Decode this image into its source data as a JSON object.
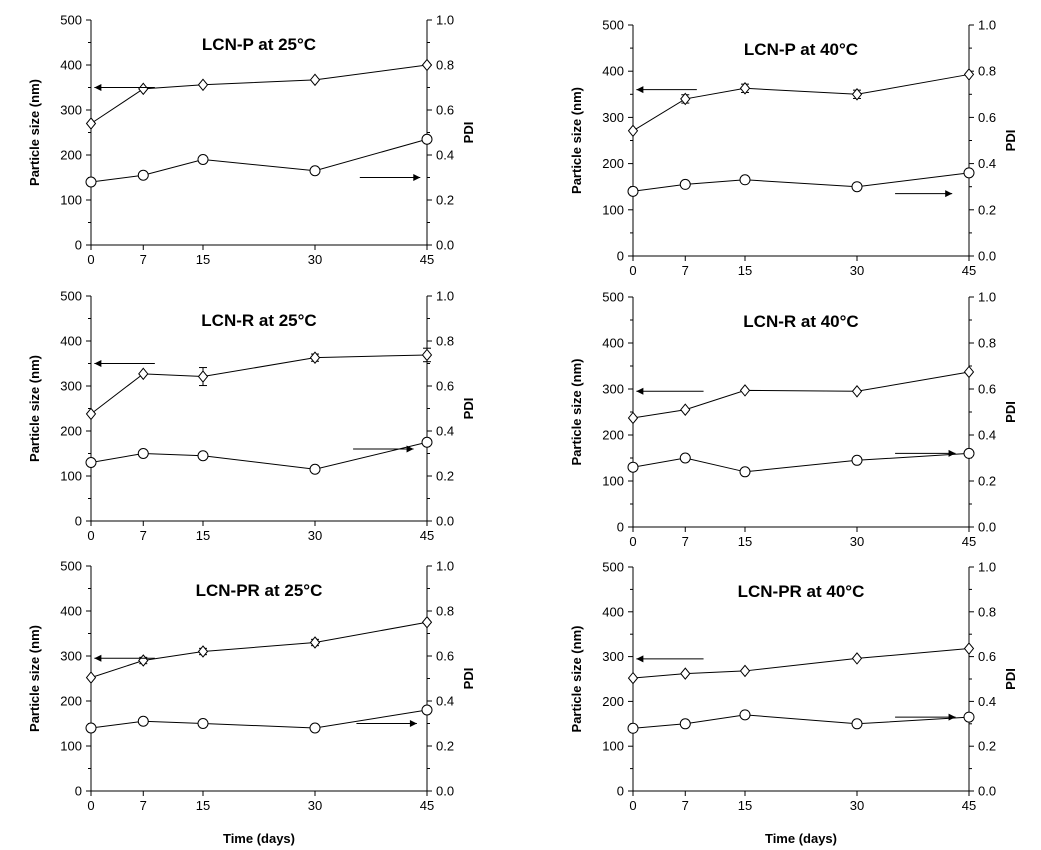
{
  "chart_data": [
    {
      "type": "line",
      "title": "LCN-P at 25°C",
      "xlabel": "",
      "ylabel": "Particle size (nm)",
      "y2label": "PDI",
      "x": [
        0,
        7,
        15,
        30,
        45
      ],
      "ylim": [
        0,
        500
      ],
      "y2lim": [
        0.0,
        1.0
      ],
      "yticks": [
        "0",
        "100",
        "200",
        "300",
        "400",
        "500"
      ],
      "y2ticks": [
        "0.0",
        "0.2",
        "0.4",
        "0.6",
        "0.8",
        "1.0"
      ],
      "series": [
        {
          "axis": "left",
          "marker": "diamond",
          "values": [
            270,
            347,
            356,
            367,
            400
          ],
          "errors": [
            0,
            0,
            0,
            0,
            0
          ]
        },
        {
          "axis": "right",
          "marker": "circle",
          "values": [
            0.28,
            0.31,
            0.38,
            0.33,
            0.47
          ],
          "errors": [
            0,
            0,
            0,
            0,
            0
          ]
        }
      ]
    },
    {
      "type": "line",
      "title": "LCN-P at 40°C",
      "xlabel": "",
      "ylabel": "Particle size (nm)",
      "y2label": "PDI",
      "x": [
        0,
        7,
        15,
        30,
        45
      ],
      "ylim": [
        0,
        500
      ],
      "y2lim": [
        0.0,
        1.0
      ],
      "yticks": [
        "0",
        "100",
        "200",
        "300",
        "400",
        "500"
      ],
      "y2ticks": [
        "0.0",
        "0.2",
        "0.4",
        "0.6",
        "0.8",
        "1.0"
      ],
      "series": [
        {
          "axis": "left",
          "marker": "diamond",
          "values": [
            271,
            340,
            363,
            350,
            393
          ],
          "errors": [
            0,
            9,
            9,
            9,
            0
          ]
        },
        {
          "axis": "right",
          "marker": "circle",
          "values": [
            0.28,
            0.31,
            0.33,
            0.3,
            0.36
          ],
          "errors": [
            0,
            0,
            0,
            0,
            0
          ]
        }
      ]
    },
    {
      "type": "line",
      "title": "LCN-R at 25°C",
      "xlabel": "",
      "ylabel": "Particle size (nm)",
      "y2label": "PDI",
      "x": [
        0,
        7,
        15,
        30,
        45
      ],
      "ylim": [
        0,
        500
      ],
      "y2lim": [
        0.0,
        1.0
      ],
      "yticks": [
        "0",
        "100",
        "200",
        "300",
        "400",
        "500"
      ],
      "y2ticks": [
        "0.0",
        "0.2",
        "0.4",
        "0.6",
        "0.8",
        "1.0"
      ],
      "series": [
        {
          "axis": "left",
          "marker": "diamond",
          "values": [
            238,
            327,
            321,
            363,
            369
          ],
          "errors": [
            0,
            0,
            20,
            8,
            15
          ]
        },
        {
          "axis": "right",
          "marker": "circle",
          "values": [
            0.26,
            0.3,
            0.29,
            0.23,
            0.35
          ],
          "errors": [
            0,
            0,
            0,
            0,
            0
          ]
        }
      ]
    },
    {
      "type": "line",
      "title": "LCN-R at 40°C",
      "xlabel": "",
      "ylabel": "Particle size (nm)",
      "y2label": "PDI",
      "x": [
        0,
        7,
        15,
        30,
        45
      ],
      "ylim": [
        0,
        500
      ],
      "y2lim": [
        0.0,
        1.0
      ],
      "yticks": [
        "0",
        "100",
        "200",
        "300",
        "400",
        "500"
      ],
      "y2ticks": [
        "0.0",
        "0.2",
        "0.4",
        "0.6",
        "0.8",
        "1.0"
      ],
      "series": [
        {
          "axis": "left",
          "marker": "diamond",
          "values": [
            237,
            255,
            297,
            295,
            337
          ],
          "errors": [
            0,
            0,
            0,
            0,
            0
          ]
        },
        {
          "axis": "right",
          "marker": "circle",
          "values": [
            0.26,
            0.3,
            0.24,
            0.29,
            0.32
          ],
          "errors": [
            0,
            0,
            0,
            0,
            0
          ]
        }
      ]
    },
    {
      "type": "line",
      "title": "LCN-PR at 25°C",
      "xlabel": "Time (days)",
      "ylabel": "Particle size (nm)",
      "y2label": "PDI",
      "x": [
        0,
        7,
        15,
        30,
        45
      ],
      "ylim": [
        0,
        500
      ],
      "y2lim": [
        0.0,
        1.0
      ],
      "yticks": [
        "0",
        "100",
        "200",
        "300",
        "400",
        "500"
      ],
      "y2ticks": [
        "0.0",
        "0.2",
        "0.4",
        "0.6",
        "0.8",
        "1.0"
      ],
      "series": [
        {
          "axis": "left",
          "marker": "diamond",
          "values": [
            252,
            290,
            310,
            330,
            375
          ],
          "errors": [
            0,
            7,
            7,
            7,
            0
          ]
        },
        {
          "axis": "right",
          "marker": "circle",
          "values": [
            0.28,
            0.31,
            0.3,
            0.28,
            0.36
          ],
          "errors": [
            0,
            0,
            0,
            0,
            0
          ]
        }
      ]
    },
    {
      "type": "line",
      "title": "LCN-PR at 40°C",
      "xlabel": "Time (days)",
      "ylabel": "Particle size (nm)",
      "y2label": "PDI",
      "x": [
        0,
        7,
        15,
        30,
        45
      ],
      "ylim": [
        0,
        500
      ],
      "y2lim": [
        0.0,
        1.0
      ],
      "yticks": [
        "0",
        "100",
        "200",
        "300",
        "400",
        "500"
      ],
      "y2ticks": [
        "0.0",
        "0.2",
        "0.4",
        "0.6",
        "0.8",
        "1.0"
      ],
      "series": [
        {
          "axis": "left",
          "marker": "diamond",
          "values": [
            252,
            262,
            268,
            296,
            318
          ],
          "errors": [
            0,
            0,
            0,
            0,
            0
          ]
        },
        {
          "axis": "right",
          "marker": "circle",
          "values": [
            0.28,
            0.3,
            0.34,
            0.3,
            0.33
          ],
          "errors": [
            0,
            0,
            0,
            0,
            0
          ]
        }
      ]
    }
  ]
}
